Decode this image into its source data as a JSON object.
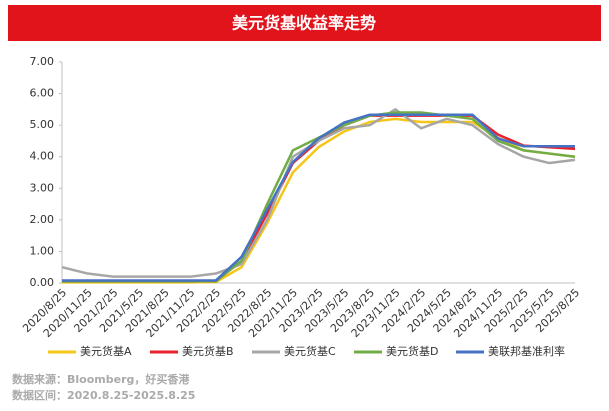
{
  "chart_data": {
    "type": "line",
    "title": "美元货基收益率走势",
    "source": "数据来源：Bloomberg，好买香港",
    "period": "数据区间：2020.8.25-2025.8.25",
    "categories": [
      "2020/8/25",
      "2020/11/25",
      "2021/2/25",
      "2021/5/25",
      "2021/8/25",
      "2021/11/25",
      "2022/2/25",
      "2022/5/25",
      "2022/8/25",
      "2022/11/25",
      "2023/2/25",
      "2023/5/25",
      "2023/8/25",
      "2023/11/25",
      "2024/2/25",
      "2024/5/25",
      "2024/8/25",
      "2024/11/25",
      "2025/2/25",
      "2025/5/25",
      "2025/8/25"
    ],
    "series": [
      {
        "name": "美元货基A",
        "color": "#f5c518",
        "values": [
          0.02,
          0.02,
          0.02,
          0.02,
          0.02,
          0.02,
          0.03,
          0.5,
          1.9,
          3.5,
          4.3,
          4.8,
          5.1,
          5.2,
          5.1,
          5.1,
          5.1,
          4.6,
          4.2,
          4.1,
          4.0
        ]
      },
      {
        "name": "美元货基B",
        "color": "#e8212b",
        "values": [
          0.05,
          0.05,
          0.05,
          0.05,
          0.05,
          0.05,
          0.06,
          0.7,
          2.2,
          3.8,
          4.5,
          5.0,
          5.3,
          5.3,
          5.3,
          5.3,
          5.3,
          4.7,
          4.35,
          4.3,
          4.25
        ]
      },
      {
        "name": "美元货基C",
        "color": "#a6a6a6",
        "values": [
          0.5,
          0.3,
          0.2,
          0.2,
          0.2,
          0.2,
          0.3,
          0.6,
          2.0,
          4.0,
          4.5,
          4.9,
          5.0,
          5.5,
          4.9,
          5.2,
          5.0,
          4.4,
          4.0,
          3.8,
          3.9
        ]
      },
      {
        "name": "美元货基D",
        "color": "#70ad47",
        "values": [
          0.05,
          0.05,
          0.05,
          0.05,
          0.05,
          0.05,
          0.06,
          0.7,
          2.5,
          4.2,
          4.6,
          5.0,
          5.3,
          5.4,
          5.4,
          5.3,
          5.2,
          4.5,
          4.2,
          4.1,
          4.0
        ]
      },
      {
        "name": "美联邦基准利率",
        "color": "#4472c4",
        "values": [
          0.08,
          0.08,
          0.08,
          0.08,
          0.08,
          0.08,
          0.08,
          0.83,
          2.33,
          3.83,
          4.58,
          5.08,
          5.33,
          5.33,
          5.33,
          5.33,
          5.33,
          4.58,
          4.33,
          4.33,
          4.33
        ]
      }
    ],
    "ylim": [
      0,
      7
    ],
    "yticks": [
      {
        "value": 0,
        "label": "0.00"
      },
      {
        "value": 1,
        "label": "1.00"
      },
      {
        "value": 2,
        "label": "2.00"
      },
      {
        "value": 3,
        "label": "3.00"
      },
      {
        "value": 4,
        "label": "4.00"
      },
      {
        "value": 5,
        "label": "5.00"
      },
      {
        "value": 6,
        "label": "6.00"
      },
      {
        "value": 7,
        "label": "7.00"
      }
    ],
    "grid": false,
    "legend": "bottom"
  }
}
